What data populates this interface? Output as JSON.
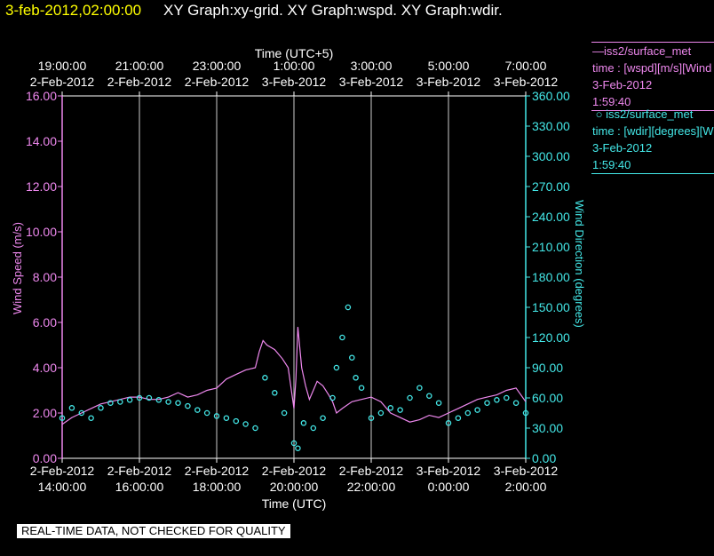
{
  "header": {
    "date_time": "3-feb-2012,02:00:00",
    "graphs": "XY Graph:xy-grid.  XY Graph:wspd.  XY Graph:wdir."
  },
  "chart_data": {
    "type": "line",
    "top_axis_title": "Time (UTC+5)",
    "top_ticks": [
      {
        "time": "19:00:00",
        "date": "2-Feb-2012"
      },
      {
        "time": "21:00:00",
        "date": "2-Feb-2012"
      },
      {
        "time": "23:00:00",
        "date": "2-Feb-2012"
      },
      {
        "time": "1:00:00",
        "date": "3-Feb-2012"
      },
      {
        "time": "3:00:00",
        "date": "3-Feb-2012"
      },
      {
        "time": "5:00:00",
        "date": "3-Feb-2012"
      },
      {
        "time": "7:00:00",
        "date": "3-Feb-2012"
      }
    ],
    "xlabel": "Time (UTC)",
    "x_ticks": [
      {
        "date": "2-Feb-2012",
        "time": "14:00:00"
      },
      {
        "date": "2-Feb-2012",
        "time": "16:00:00"
      },
      {
        "date": "2-Feb-2012",
        "time": "18:00:00"
      },
      {
        "date": "2-Feb-2012",
        "time": "20:00:00"
      },
      {
        "date": "2-Feb-2012",
        "time": "22:00:00"
      },
      {
        "date": "3-Feb-2012",
        "time": "0:00:00"
      },
      {
        "date": "3-Feb-2012",
        "time": "2:00:00"
      }
    ],
    "xlim": [
      "2-Feb-2012 14:00:00",
      "3-Feb-2012 2:00:00"
    ],
    "grid": "vertical lines at each x tick",
    "y_left": {
      "label": "Wind Speed (m/s)",
      "ylim": [
        0,
        16
      ],
      "ticks": [
        "0.00",
        "2.00",
        "4.00",
        "6.00",
        "8.00",
        "10.00",
        "12.00",
        "14.00",
        "16.00"
      ],
      "color": "#ee88ee"
    },
    "y_right": {
      "label": "Wind Direction (degrees)",
      "ylim": [
        0,
        360
      ],
      "ticks": [
        "0.00",
        "30.00",
        "60.00",
        "90.00",
        "120.00",
        "150.00",
        "180.00",
        "210.00",
        "240.00",
        "270.00",
        "300.00",
        "330.00",
        "360.00"
      ],
      "color": "#44e8e8"
    },
    "series": [
      {
        "name": "iss2/surface_met",
        "axis": "left",
        "style": "line",
        "color": "#ee88ee",
        "x_hours_utc": [
          14.0,
          14.25,
          14.5,
          14.75,
          15.0,
          15.25,
          15.5,
          15.75,
          16.0,
          16.25,
          16.5,
          16.75,
          17.0,
          17.25,
          17.5,
          17.75,
          18.0,
          18.25,
          18.5,
          18.75,
          19.0,
          19.1,
          19.2,
          19.3,
          19.5,
          19.7,
          19.85,
          20.0,
          20.05,
          20.1,
          20.2,
          20.3,
          20.4,
          20.5,
          20.6,
          20.75,
          20.9,
          21.0,
          21.1,
          21.25,
          21.5,
          21.75,
          22.0,
          22.25,
          22.5,
          22.75,
          23.0,
          23.25,
          23.5,
          23.75,
          24.0,
          24.25,
          24.5,
          24.75,
          25.0,
          25.25,
          25.5,
          25.75,
          26.0
        ],
        "values": [
          1.5,
          1.8,
          2.0,
          2.2,
          2.4,
          2.5,
          2.6,
          2.7,
          2.7,
          2.6,
          2.6,
          2.7,
          2.9,
          2.7,
          2.8,
          3.0,
          3.1,
          3.5,
          3.7,
          3.9,
          4.0,
          4.7,
          5.2,
          5.0,
          4.8,
          4.4,
          4.0,
          2.2,
          3.5,
          5.8,
          4.0,
          3.2,
          2.6,
          3.0,
          3.4,
          3.2,
          2.8,
          2.5,
          2.0,
          2.2,
          2.5,
          2.6,
          2.7,
          2.5,
          2.0,
          1.8,
          1.6,
          1.7,
          1.9,
          1.8,
          2.0,
          2.2,
          2.4,
          2.6,
          2.7,
          2.8,
          3.0,
          3.1,
          2.5
        ]
      },
      {
        "name": "iss2/surface_met",
        "axis": "right",
        "style": "scatter",
        "color": "#44e8e8",
        "x_hours_utc": [
          14.0,
          14.25,
          14.5,
          14.75,
          15.0,
          15.25,
          15.5,
          15.75,
          16.0,
          16.25,
          16.5,
          16.75,
          17.0,
          17.25,
          17.5,
          17.75,
          18.0,
          18.25,
          18.5,
          18.75,
          19.0,
          19.25,
          19.5,
          19.75,
          20.0,
          20.1,
          20.25,
          20.5,
          20.75,
          21.0,
          21.1,
          21.25,
          21.4,
          21.5,
          21.6,
          21.75,
          22.0,
          22.25,
          22.5,
          22.75,
          23.0,
          23.25,
          23.5,
          23.75,
          24.0,
          24.25,
          24.5,
          24.75,
          25.0,
          25.25,
          25.5,
          25.75,
          26.0
        ],
        "values": [
          40,
          50,
          45,
          40,
          50,
          55,
          56,
          58,
          60,
          60,
          58,
          56,
          55,
          52,
          48,
          45,
          42,
          40,
          37,
          34,
          30,
          80,
          65,
          45,
          15,
          10,
          35,
          30,
          40,
          60,
          90,
          120,
          150,
          100,
          80,
          70,
          40,
          45,
          50,
          48,
          60,
          70,
          62,
          55,
          35,
          40,
          45,
          48,
          55,
          58,
          60,
          55,
          45
        ]
      }
    ]
  },
  "legend": {
    "wspd": {
      "name": "iss2/surface_met",
      "variable": "time : [wspd][m/s][Wind",
      "date": "3-Feb-2012",
      "time": "1:59:40"
    },
    "wdir": {
      "name": "iss2/surface_met",
      "variable": "time : [wdir][degrees][W",
      "date": "3-Feb-2012",
      "time": "1:59:40"
    }
  },
  "footer": {
    "note": "REAL-TIME DATA, NOT CHECKED FOR QUALITY"
  }
}
